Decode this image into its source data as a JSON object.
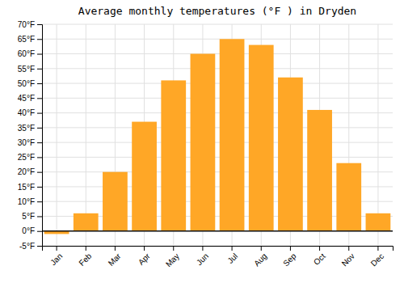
{
  "chart_data": {
    "type": "bar",
    "title": "Average monthly temperatures (°F ) in Dryden",
    "categories": [
      "Jan",
      "Feb",
      "Mar",
      "Apr",
      "May",
      "Jun",
      "Jul",
      "Aug",
      "Sep",
      "Oct",
      "Nov",
      "Dec"
    ],
    "values": [
      -1,
      6,
      20,
      37,
      51,
      60,
      65,
      63,
      52,
      41,
      23,
      6
    ],
    "color": "#FFA726",
    "ylim": [
      -5,
      70
    ],
    "yticks": [
      {
        "value": -5,
        "label": "-5°F"
      },
      {
        "value": 0,
        "label": "0°F"
      },
      {
        "value": 5,
        "label": "5°F"
      },
      {
        "value": 10,
        "label": "10°F"
      },
      {
        "value": 15,
        "label": "15°F"
      },
      {
        "value": 20,
        "label": "20°F"
      },
      {
        "value": 25,
        "label": "25°F"
      },
      {
        "value": 30,
        "label": "30°F"
      },
      {
        "value": 35,
        "label": "35°F"
      },
      {
        "value": 40,
        "label": "40°F"
      },
      {
        "value": 45,
        "label": "45°F"
      },
      {
        "value": 50,
        "label": "50°F"
      },
      {
        "value": 55,
        "label": "55°F"
      },
      {
        "value": 60,
        "label": "60°F"
      },
      {
        "value": 65,
        "label": "65°F"
      },
      {
        "value": 70,
        "label": "70°F"
      }
    ],
    "grid": true
  }
}
